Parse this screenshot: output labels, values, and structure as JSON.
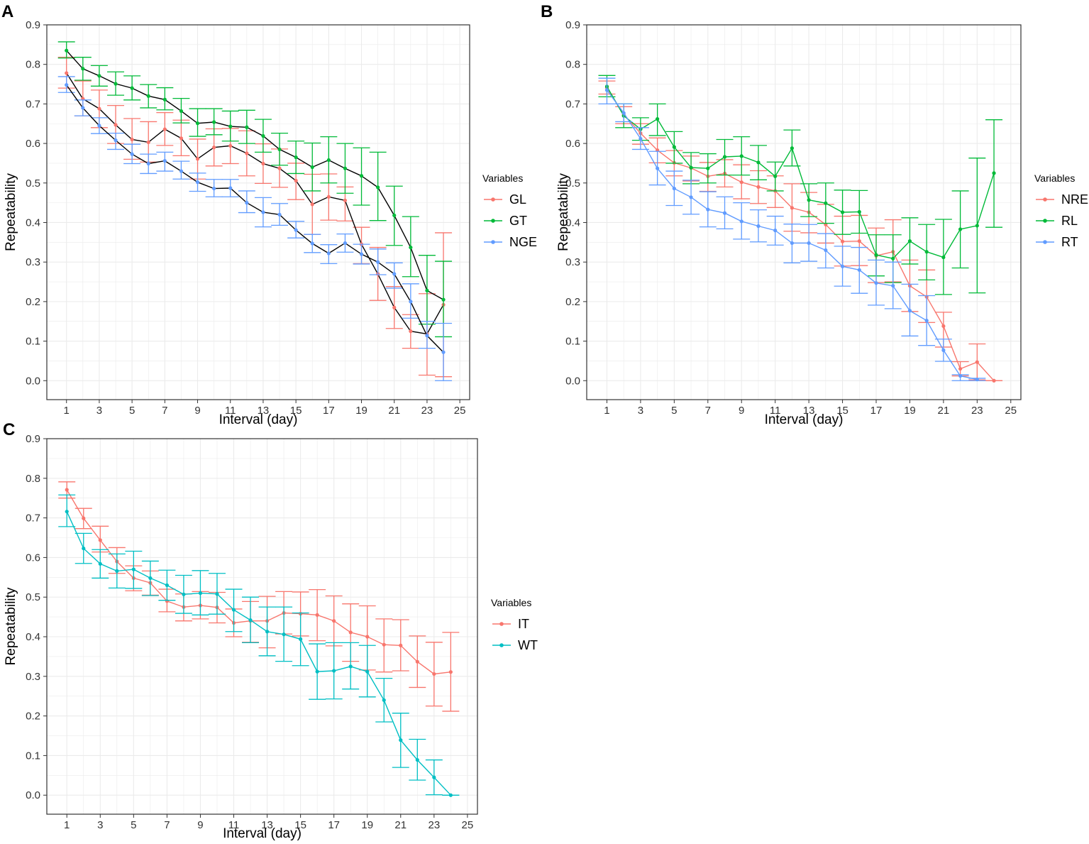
{
  "figure": {
    "legend_title": "Variables",
    "axis_color": "#333333",
    "grid_color": "#ebebeb"
  },
  "chart_data": [
    {
      "panel": "A",
      "type": "line",
      "xlabel": "Interval (day)",
      "ylabel": "Repeatability",
      "xlim": [
        -0.2,
        25.6
      ],
      "ylim": [
        -0.048,
        0.9
      ],
      "xticks": [
        1,
        3,
        5,
        7,
        9,
        11,
        13,
        15,
        17,
        19,
        21,
        23,
        25
      ],
      "yticks": [
        0.0,
        0.1,
        0.2,
        0.3,
        0.4,
        0.5,
        0.6,
        0.7,
        0.8,
        0.9
      ],
      "ytick_labels": [
        "0.0",
        "0.1",
        "0.2",
        "0.3",
        "0.4",
        "0.5",
        "0.6",
        "0.7",
        "0.8",
        "0.9"
      ],
      "xtick_labels": [
        "1",
        "3",
        "5",
        "7",
        "9",
        "11",
        "13",
        "15",
        "17",
        "19",
        "21",
        "23",
        "25"
      ],
      "legend_title": "Variables",
      "grid": true,
      "legend_position": "right",
      "line_color_override": "#000000",
      "x": [
        1,
        2,
        3,
        4,
        5,
        6,
        7,
        8,
        9,
        10,
        11,
        12,
        13,
        14,
        15,
        16,
        17,
        18,
        19,
        20,
        21,
        22,
        23,
        24
      ],
      "series": [
        {
          "name": "GL",
          "color": "#F8766D",
          "values": [
            0.778,
            0.713,
            0.688,
            0.647,
            0.61,
            0.603,
            0.636,
            0.613,
            0.561,
            0.59,
            0.594,
            0.575,
            0.549,
            0.537,
            0.506,
            0.446,
            0.465,
            0.456,
            0.345,
            0.27,
            0.185,
            0.125,
            0.118,
            0.192
          ],
          "lower": [
            0.74,
            0.67,
            0.64,
            0.6,
            0.56,
            0.553,
            0.595,
            0.569,
            0.51,
            0.543,
            0.549,
            0.518,
            0.499,
            0.489,
            0.458,
            0.37,
            0.406,
            0.404,
            0.296,
            0.203,
            0.132,
            0.082,
            0.014,
            0.01
          ],
          "upper": [
            0.818,
            0.758,
            0.735,
            0.696,
            0.663,
            0.655,
            0.678,
            0.659,
            0.611,
            0.637,
            0.638,
            0.632,
            0.599,
            0.586,
            0.55,
            0.522,
            0.523,
            0.49,
            0.388,
            0.337,
            0.238,
            0.167,
            0.22,
            0.374
          ]
        },
        {
          "name": "GT",
          "color": "#00BA38",
          "values": [
            0.835,
            0.789,
            0.771,
            0.751,
            0.74,
            0.72,
            0.711,
            0.682,
            0.651,
            0.654,
            0.643,
            0.641,
            0.619,
            0.585,
            0.565,
            0.54,
            0.558,
            0.537,
            0.518,
            0.489,
            0.418,
            0.337,
            0.228,
            0.205
          ],
          "lower": [
            0.816,
            0.76,
            0.745,
            0.722,
            0.71,
            0.69,
            0.685,
            0.652,
            0.618,
            0.622,
            0.606,
            0.6,
            0.578,
            0.545,
            0.524,
            0.48,
            0.5,
            0.474,
            0.444,
            0.405,
            0.342,
            0.263,
            0.143,
            0.111
          ],
          "upper": [
            0.857,
            0.818,
            0.797,
            0.781,
            0.771,
            0.749,
            0.741,
            0.714,
            0.688,
            0.688,
            0.682,
            0.684,
            0.661,
            0.626,
            0.606,
            0.601,
            0.617,
            0.6,
            0.589,
            0.578,
            0.492,
            0.415,
            0.317,
            0.302
          ]
        },
        {
          "name": "NGE",
          "color": "#619CFF",
          "values": [
            0.748,
            0.69,
            0.645,
            0.608,
            0.573,
            0.549,
            0.556,
            0.53,
            0.502,
            0.486,
            0.487,
            0.45,
            0.426,
            0.42,
            0.381,
            0.347,
            0.322,
            0.348,
            0.32,
            0.3,
            0.27,
            0.2,
            0.114,
            0.072
          ],
          "lower": [
            0.729,
            0.67,
            0.625,
            0.585,
            0.549,
            0.524,
            0.53,
            0.51,
            0.479,
            0.465,
            0.465,
            0.425,
            0.389,
            0.393,
            0.361,
            0.324,
            0.296,
            0.325,
            0.295,
            0.268,
            0.234,
            0.158,
            0.082,
            0.0
          ],
          "upper": [
            0.769,
            0.71,
            0.665,
            0.626,
            0.598,
            0.573,
            0.578,
            0.555,
            0.525,
            0.509,
            0.509,
            0.48,
            0.463,
            0.448,
            0.403,
            0.37,
            0.344,
            0.371,
            0.345,
            0.333,
            0.298,
            0.245,
            0.15,
            0.145
          ]
        }
      ]
    },
    {
      "panel": "B",
      "type": "line",
      "xlabel": "Interval (day)",
      "ylabel": "Repeatability",
      "xlim": [
        -0.2,
        25.6
      ],
      "ylim": [
        -0.048,
        0.9
      ],
      "xticks": [
        1,
        3,
        5,
        7,
        9,
        11,
        13,
        15,
        17,
        19,
        21,
        23,
        25
      ],
      "yticks": [
        0.0,
        0.1,
        0.2,
        0.3,
        0.4,
        0.5,
        0.6,
        0.7,
        0.8,
        0.9
      ],
      "ytick_labels": [
        "0.0",
        "0.1",
        "0.2",
        "0.3",
        "0.4",
        "0.5",
        "0.6",
        "0.7",
        "0.8",
        "0.9"
      ],
      "xtick_labels": [
        "1",
        "3",
        "5",
        "7",
        "9",
        "11",
        "13",
        "15",
        "17",
        "19",
        "21",
        "23",
        "25"
      ],
      "legend_title": "Variables",
      "grid": true,
      "legend_position": "right",
      "x": [
        1,
        2,
        3,
        4,
        5,
        6,
        7,
        8,
        9,
        10,
        11,
        12,
        13,
        14,
        15,
        16,
        17,
        18,
        19,
        20,
        21,
        22,
        23,
        24
      ],
      "series": [
        {
          "name": "NRE",
          "color": "#F8766D",
          "values": [
            0.741,
            0.673,
            0.626,
            0.583,
            0.551,
            0.538,
            0.517,
            0.524,
            0.502,
            0.49,
            0.48,
            0.437,
            0.426,
            0.395,
            0.352,
            0.353,
            0.316,
            0.326,
            0.24,
            0.212,
            0.138,
            0.03,
            0.047,
            0.0
          ],
          "lower": [
            0.725,
            0.65,
            0.598,
            0.551,
            0.518,
            0.505,
            0.479,
            0.49,
            0.46,
            0.448,
            0.438,
            0.378,
            0.374,
            0.348,
            0.29,
            0.291,
            0.248,
            0.25,
            0.175,
            0.147,
            0.085,
            0.012,
            0.002,
            0.0
          ],
          "upper": [
            0.758,
            0.693,
            0.65,
            0.614,
            0.582,
            0.568,
            0.552,
            0.559,
            0.546,
            0.531,
            0.518,
            0.498,
            0.476,
            0.446,
            0.416,
            0.418,
            0.386,
            0.407,
            0.305,
            0.28,
            0.173,
            0.048,
            0.093,
            0.0
          ]
        },
        {
          "name": "RL",
          "color": "#00BA38",
          "values": [
            0.744,
            0.67,
            0.636,
            0.662,
            0.591,
            0.539,
            0.537,
            0.566,
            0.568,
            0.552,
            0.517,
            0.588,
            0.457,
            0.449,
            0.426,
            0.427,
            0.318,
            0.309,
            0.353,
            0.326,
            0.312,
            0.383,
            0.392,
            0.525
          ],
          "lower": [
            0.718,
            0.64,
            0.608,
            0.62,
            0.55,
            0.498,
            0.5,
            0.52,
            0.52,
            0.508,
            0.48,
            0.543,
            0.415,
            0.398,
            0.37,
            0.373,
            0.265,
            0.248,
            0.295,
            0.255,
            0.218,
            0.285,
            0.222,
            0.388
          ],
          "upper": [
            0.772,
            0.7,
            0.665,
            0.7,
            0.63,
            0.577,
            0.574,
            0.61,
            0.617,
            0.595,
            0.553,
            0.634,
            0.498,
            0.5,
            0.482,
            0.481,
            0.369,
            0.369,
            0.412,
            0.395,
            0.408,
            0.48,
            0.563,
            0.66
          ]
        },
        {
          "name": "RT",
          "color": "#619CFF",
          "values": [
            0.735,
            0.677,
            0.612,
            0.537,
            0.486,
            0.464,
            0.433,
            0.424,
            0.403,
            0.391,
            0.38,
            0.348,
            0.348,
            0.33,
            0.289,
            0.28,
            0.247,
            0.24,
            0.177,
            0.152,
            0.077,
            0.012,
            0.003,
            null
          ],
          "lower": [
            0.7,
            0.655,
            0.585,
            0.495,
            0.443,
            0.421,
            0.389,
            0.384,
            0.358,
            0.351,
            0.343,
            0.298,
            0.302,
            0.285,
            0.239,
            0.221,
            0.191,
            0.182,
            0.113,
            0.089,
            0.049,
            0.0,
            0.0,
            null
          ],
          "upper": [
            0.765,
            0.7,
            0.64,
            0.58,
            0.53,
            0.507,
            0.478,
            0.465,
            0.45,
            0.432,
            0.416,
            0.396,
            0.395,
            0.372,
            0.34,
            0.337,
            0.305,
            0.3,
            0.244,
            0.215,
            0.105,
            0.015,
            0.006,
            null
          ]
        }
      ]
    },
    {
      "panel": "C",
      "type": "line",
      "xlabel": "Interval (day)",
      "ylabel": "Repeatability",
      "xlim": [
        -0.2,
        25.6
      ],
      "ylim": [
        -0.048,
        0.9
      ],
      "xticks": [
        1,
        3,
        5,
        7,
        9,
        11,
        13,
        15,
        17,
        19,
        21,
        23,
        25
      ],
      "yticks": [
        0.0,
        0.1,
        0.2,
        0.3,
        0.4,
        0.5,
        0.6,
        0.7,
        0.8,
        0.9
      ],
      "ytick_labels": [
        "0.0",
        "0.1",
        "0.2",
        "0.3",
        "0.4",
        "0.5",
        "0.6",
        "0.7",
        "0.8",
        "0.9"
      ],
      "xtick_labels": [
        "1",
        "3",
        "5",
        "7",
        "9",
        "11",
        "13",
        "15",
        "17",
        "19",
        "21",
        "23",
        "25"
      ],
      "legend_title": "Variables",
      "grid": true,
      "legend_position": "right",
      "x": [
        1,
        2,
        3,
        4,
        5,
        6,
        7,
        8,
        9,
        10,
        11,
        12,
        13,
        14,
        15,
        16,
        17,
        18,
        19,
        20,
        21,
        22,
        23,
        24
      ],
      "series": [
        {
          "name": "IT",
          "color": "#F8766D",
          "values": [
            0.771,
            0.699,
            0.644,
            0.59,
            0.548,
            0.536,
            0.49,
            0.475,
            0.479,
            0.474,
            0.435,
            0.44,
            0.44,
            0.46,
            0.458,
            0.455,
            0.44,
            0.411,
            0.4,
            0.38,
            0.378,
            0.337,
            0.306,
            0.311
          ],
          "lower": [
            0.75,
            0.673,
            0.614,
            0.56,
            0.516,
            0.505,
            0.463,
            0.44,
            0.445,
            0.435,
            0.4,
            0.386,
            0.372,
            0.407,
            0.402,
            0.39,
            0.377,
            0.338,
            0.316,
            0.311,
            0.314,
            0.272,
            0.225,
            0.212
          ],
          "upper": [
            0.791,
            0.724,
            0.679,
            0.625,
            0.579,
            0.566,
            0.52,
            0.508,
            0.514,
            0.512,
            0.47,
            0.489,
            0.502,
            0.514,
            0.513,
            0.519,
            0.503,
            0.483,
            0.478,
            0.445,
            0.443,
            0.402,
            0.386,
            0.411
          ]
        },
        {
          "name": "WT",
          "color": "#00BFC4",
          "values": [
            0.716,
            0.623,
            0.584,
            0.566,
            0.57,
            0.548,
            0.53,
            0.507,
            0.51,
            0.508,
            0.468,
            0.442,
            0.413,
            0.406,
            0.394,
            0.312,
            0.314,
            0.325,
            0.312,
            0.24,
            0.139,
            0.089,
            0.045,
            0.0
          ],
          "lower": [
            0.678,
            0.585,
            0.548,
            0.523,
            0.522,
            0.504,
            0.492,
            0.459,
            0.455,
            0.457,
            0.413,
            0.385,
            0.352,
            0.338,
            0.327,
            0.242,
            0.243,
            0.268,
            0.248,
            0.185,
            0.07,
            0.038,
            0.001,
            0.0
          ],
          "upper": [
            0.758,
            0.661,
            0.62,
            0.609,
            0.616,
            0.591,
            0.568,
            0.555,
            0.567,
            0.56,
            0.52,
            0.5,
            0.475,
            0.475,
            0.46,
            0.382,
            0.385,
            0.385,
            0.378,
            0.295,
            0.207,
            0.141,
            0.089,
            0.0
          ]
        }
      ]
    }
  ]
}
